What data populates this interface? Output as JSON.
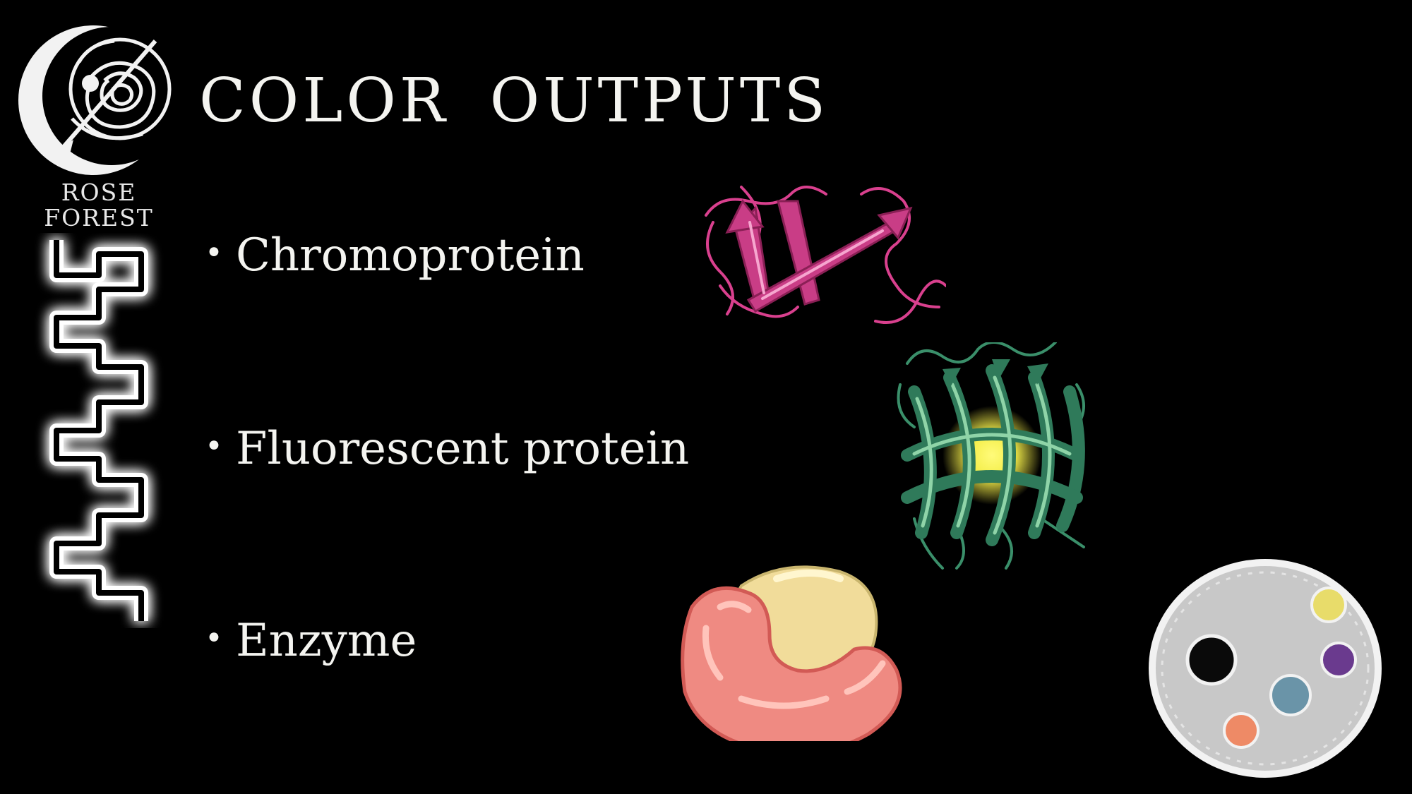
{
  "logo": {
    "icon": "moon-rose-logo-icon",
    "line1": "ROSE",
    "line2": "FOREST"
  },
  "decoration": {
    "icon": "dna-chain-icon"
  },
  "title": {
    "word1": "COLOR",
    "word2": "OUTPUTS"
  },
  "bullets": [
    {
      "marker": "•",
      "label": "Chromoprotein"
    },
    {
      "marker": "•",
      "label": "Fluorescent protein"
    },
    {
      "marker": "•",
      "label": "Enzyme"
    }
  ],
  "illustrations": {
    "chromoprotein": {
      "icon": "pink-protein-ribbon-icon",
      "color": "#d9408e"
    },
    "fluorescent": {
      "icon": "green-barrel-protein-icon",
      "color": "#3a8f6a",
      "glow": "#f4ee4a"
    },
    "enzyme": {
      "icon": "enzyme-blob-icon",
      "color": "#ef8a82",
      "accent": "#f1dc9a"
    },
    "plate": {
      "icon": "petri-dish-icon",
      "color": "#c8c8c8"
    }
  },
  "colors": {
    "background": "#000000",
    "text": "#f4f4f0"
  }
}
